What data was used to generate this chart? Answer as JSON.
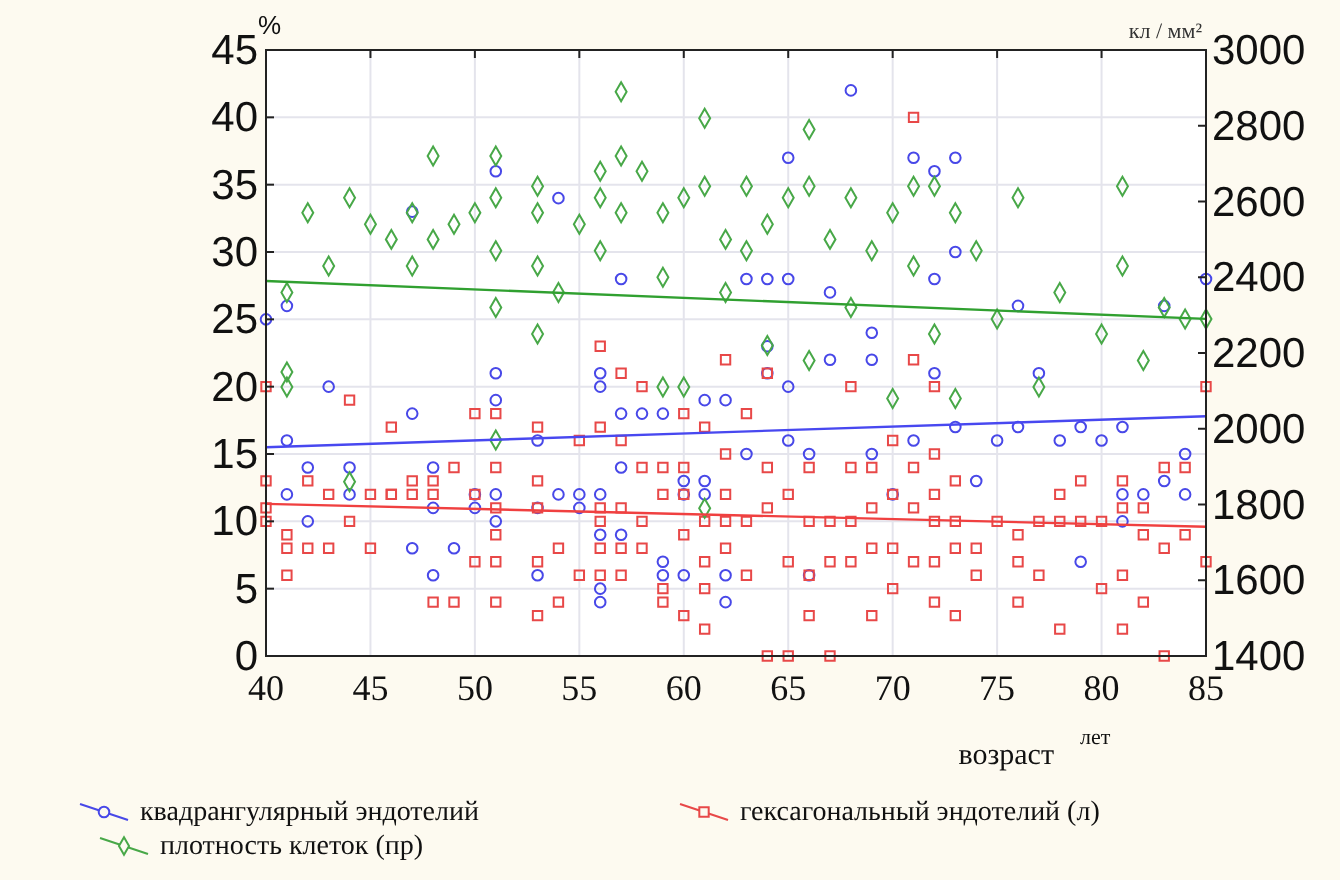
{
  "chart_data": {
    "type": "scatter",
    "xlabel": "возраст",
    "ylabel": "%",
    "y2label": "кл / мм²",
    "annotations": [
      "лет"
    ],
    "xlim": [
      40,
      85
    ],
    "xticks": [
      40,
      45,
      50,
      55,
      60,
      65,
      70,
      75,
      80,
      85
    ],
    "ylim": [
      0,
      45
    ],
    "yticks": [
      0,
      5,
      10,
      15,
      20,
      25,
      30,
      35,
      40,
      45
    ],
    "y2lim": [
      1400,
      3000
    ],
    "y2ticks": [
      1400,
      1600,
      1800,
      2000,
      2200,
      2400,
      2600,
      2800,
      3000
    ],
    "grid": true,
    "legend": "bottom",
    "series": [
      {
        "name": "квадрангулярный эндотелий",
        "color": "#4848e8",
        "marker": "circle",
        "x": [
          40,
          41,
          41,
          41,
          42,
          42,
          43,
          44,
          44,
          47,
          47,
          48,
          48,
          48,
          49,
          50,
          50,
          51,
          51,
          51,
          51,
          53,
          53,
          53,
          54,
          55,
          55,
          56,
          56,
          56,
          56,
          56,
          56,
          57,
          57,
          57,
          58,
          59,
          59,
          59,
          60,
          60,
          60,
          61,
          61,
          61,
          62,
          62,
          62,
          63,
          64,
          64,
          65,
          65,
          66,
          66,
          67,
          68,
          69,
          69,
          70,
          71,
          71,
          72,
          72,
          73,
          73,
          74,
          75,
          76,
          77,
          78,
          79,
          79,
          80,
          81,
          81,
          81,
          82,
          83,
          84,
          84,
          85,
          51,
          54,
          47,
          63,
          64,
          65,
          67,
          69,
          72,
          73,
          76,
          83,
          65,
          57
        ],
        "values": [
          25,
          26,
          16,
          12,
          14,
          10,
          20,
          14,
          12,
          18,
          8,
          14,
          11,
          6,
          8,
          12,
          11,
          21,
          19,
          12,
          10,
          16,
          11,
          6,
          12,
          12,
          11,
          21,
          20,
          12,
          9,
          5,
          4,
          18,
          14,
          9,
          18,
          18,
          7,
          6,
          13,
          12,
          6,
          19,
          13,
          12,
          19,
          6,
          4,
          15,
          23,
          21,
          20,
          16,
          15,
          6,
          22,
          42,
          22,
          15,
          12,
          37,
          16,
          36,
          21,
          37,
          17,
          13,
          16,
          17,
          21,
          16,
          17,
          7,
          16,
          17,
          12,
          10,
          12,
          13,
          15,
          12,
          28,
          36,
          34,
          33,
          28,
          28,
          28,
          27,
          24,
          28,
          30,
          26,
          26,
          37,
          28
        ]
      },
      {
        "name": "гексагональный эндотелий (л)",
        "color": "#e84848",
        "marker": "square",
        "x": [
          40,
          40,
          40,
          40,
          41,
          41,
          41,
          42,
          42,
          43,
          43,
          44,
          44,
          45,
          45,
          46,
          46,
          47,
          47,
          48,
          48,
          48,
          49,
          49,
          50,
          50,
          51,
          51,
          51,
          51,
          51,
          51,
          53,
          53,
          53,
          53,
          53,
          54,
          54,
          55,
          55,
          56,
          56,
          56,
          56,
          56,
          56,
          57,
          57,
          57,
          57,
          57,
          58,
          58,
          58,
          58,
          59,
          59,
          59,
          59,
          60,
          60,
          60,
          60,
          60,
          61,
          61,
          61,
          61,
          61,
          62,
          62,
          62,
          62,
          62,
          63,
          63,
          63,
          64,
          64,
          64,
          64,
          65,
          65,
          65,
          66,
          66,
          66,
          66,
          67,
          67,
          67,
          68,
          68,
          68,
          68,
          69,
          69,
          69,
          69,
          70,
          70,
          70,
          70,
          71,
          71,
          71,
          71,
          71,
          72,
          72,
          72,
          72,
          72,
          72,
          73,
          73,
          73,
          73,
          74,
          74,
          75,
          76,
          76,
          76,
          77,
          77,
          78,
          78,
          78,
          79,
          79,
          80,
          80,
          81,
          81,
          81,
          81,
          82,
          82,
          82,
          83,
          83,
          83,
          84,
          84,
          85,
          85,
          50,
          46
        ],
        "values": [
          20,
          13,
          11,
          10,
          9,
          8,
          6,
          13,
          8,
          12,
          8,
          19,
          10,
          12,
          8,
          17,
          12,
          13,
          12,
          13,
          12,
          4,
          14,
          4,
          18,
          7,
          18,
          14,
          11,
          9,
          7,
          4,
          17,
          13,
          11,
          7,
          3,
          8,
          4,
          16,
          6,
          23,
          17,
          11,
          10,
          8,
          6,
          21,
          16,
          11,
          8,
          6,
          20,
          14,
          10,
          8,
          14,
          12,
          5,
          4,
          18,
          14,
          12,
          9,
          3,
          17,
          10,
          7,
          5,
          2,
          22,
          15,
          12,
          10,
          8,
          18,
          10,
          6,
          21,
          14,
          11,
          0,
          12,
          7,
          0,
          14,
          10,
          6,
          3,
          10,
          7,
          0,
          20,
          14,
          10,
          7,
          14,
          11,
          8,
          3,
          16,
          12,
          8,
          5,
          40,
          22,
          14,
          11,
          7,
          20,
          15,
          12,
          10,
          7,
          4,
          13,
          10,
          8,
          3,
          8,
          6,
          10,
          9,
          7,
          4,
          10,
          6,
          12,
          10,
          2,
          13,
          10,
          10,
          5,
          13,
          11,
          6,
          2,
          11,
          9,
          4,
          14,
          8,
          0,
          14,
          9,
          20,
          7,
          12,
          12
        ]
      },
      {
        "name": "плотность клеток (пр)",
        "color": "#48a848",
        "marker": "diamond",
        "axis": "y2",
        "x": [
          41,
          41,
          41,
          42,
          43,
          44,
          44,
          45,
          46,
          47,
          47,
          48,
          48,
          49,
          50,
          51,
          51,
          51,
          51,
          51,
          53,
          53,
          53,
          53,
          54,
          55,
          56,
          56,
          56,
          57,
          57,
          57,
          58,
          59,
          59,
          60,
          61,
          61,
          62,
          62,
          63,
          63,
          64,
          65,
          66,
          66,
          67,
          68,
          69,
          70,
          71,
          71,
          72,
          73,
          74,
          75,
          76,
          78,
          80,
          81,
          81,
          82,
          83,
          84,
          85,
          60,
          64,
          66,
          70,
          73,
          77,
          61,
          59,
          68,
          72
        ],
        "values": [
          2360,
          2150,
          2110,
          2570,
          2430,
          2610,
          1860,
          2540,
          2500,
          2570,
          2430,
          2720,
          2500,
          2540,
          2570,
          2720,
          2610,
          2470,
          2320,
          1970,
          2640,
          2570,
          2430,
          2250,
          2360,
          2540,
          2680,
          2610,
          2470,
          2890,
          2720,
          2570,
          2680,
          2570,
          2400,
          2610,
          2820,
          2640,
          2500,
          2360,
          2640,
          2470,
          2540,
          2610,
          2790,
          2640,
          2500,
          2610,
          2470,
          2570,
          2430,
          2640,
          2640,
          2570,
          2470,
          2290,
          2610,
          2360,
          2250,
          2640,
          2430,
          2180,
          2320,
          2290,
          2290,
          2110,
          2220,
          2180,
          2080,
          2080,
          2110,
          1790,
          2110,
          2320,
          2250
        ]
      },
      {
        "type": "line",
        "color": "#4848f0",
        "x": [
          40,
          85
        ],
        "values": [
          15.5,
          17.8
        ]
      },
      {
        "type": "line",
        "color": "#f04040",
        "x": [
          40,
          85
        ],
        "values": [
          11.3,
          9.6
        ]
      },
      {
        "type": "line",
        "color": "#30a030",
        "axis": "y2",
        "x": [
          40,
          85
        ],
        "values": [
          2390,
          2290
        ]
      }
    ]
  }
}
